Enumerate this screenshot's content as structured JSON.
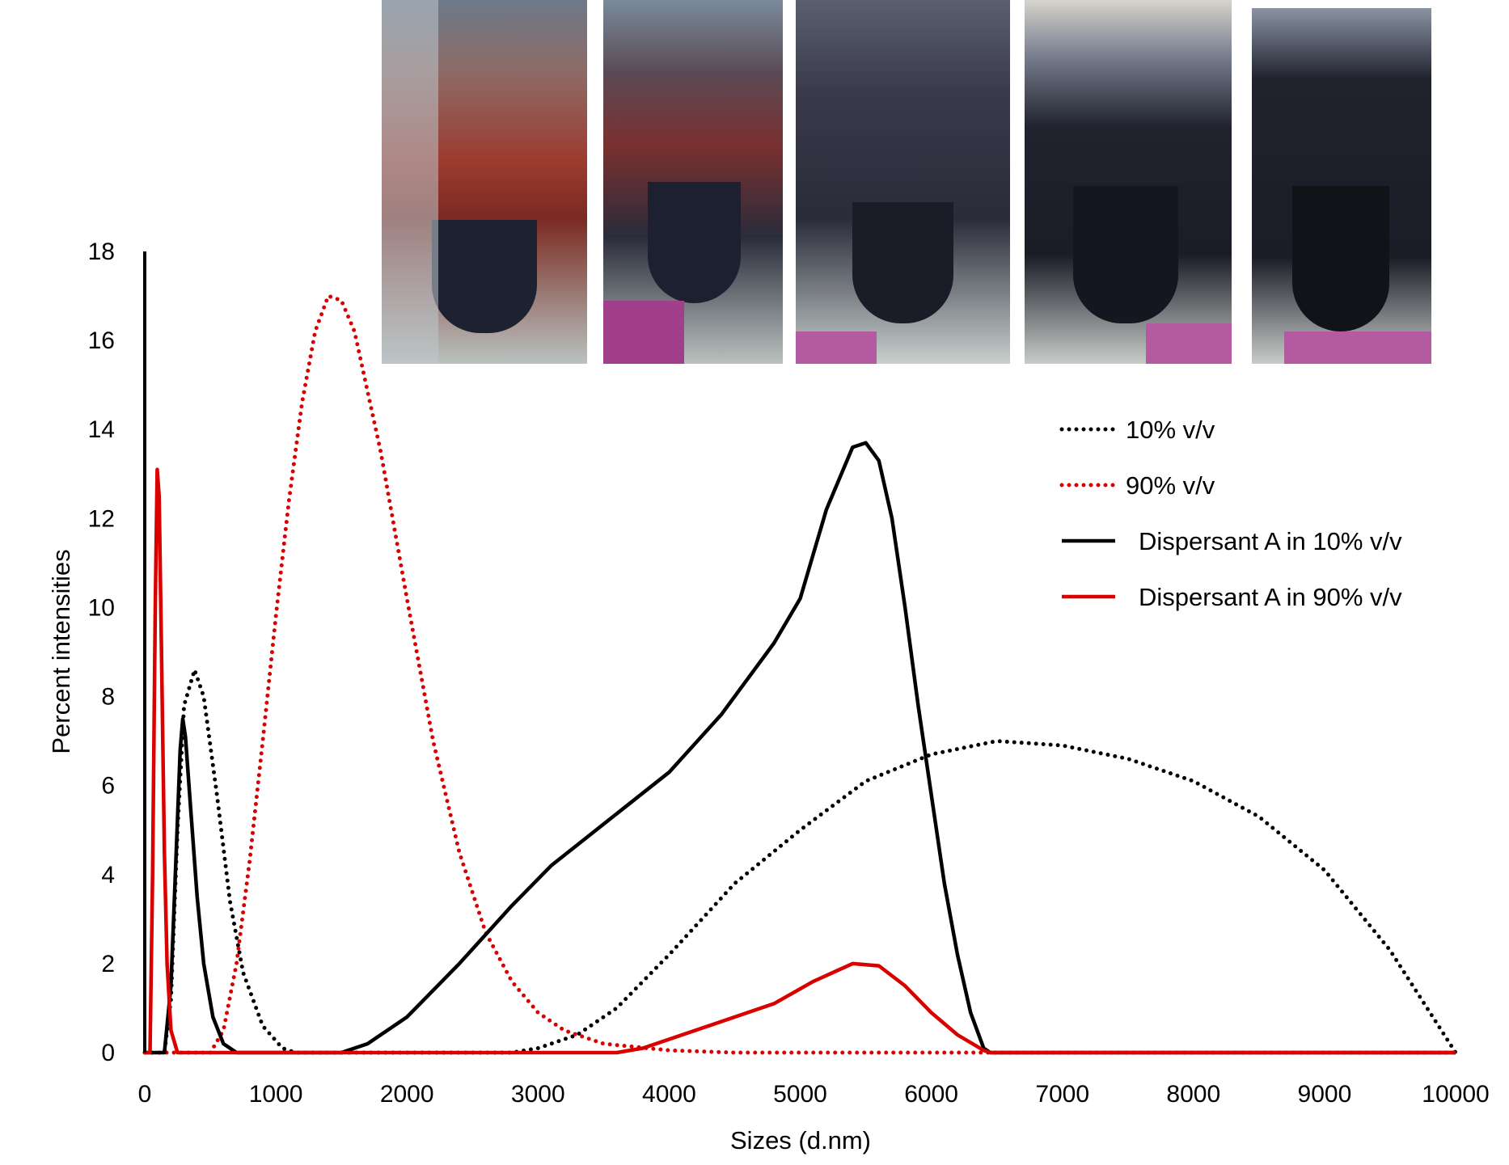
{
  "chart_data": {
    "type": "line",
    "title": "",
    "xlabel": "Sizes (d.nm)",
    "ylabel": "Percent intensities",
    "xlim": [
      0,
      10000
    ],
    "ylim": [
      0,
      18
    ],
    "x_ticks": [
      0,
      1000,
      2000,
      3000,
      4000,
      5000,
      6000,
      7000,
      8000,
      9000,
      10000
    ],
    "y_ticks": [
      0,
      2,
      4,
      6,
      8,
      10,
      12,
      14,
      16,
      18
    ],
    "grid": false,
    "legend_position": "right",
    "series": [
      {
        "name": "10% v/v",
        "color": "#000000",
        "style": "dotted",
        "points": [
          [
            0,
            0
          ],
          [
            150,
            0
          ],
          [
            200,
            1.2
          ],
          [
            250,
            5.0
          ],
          [
            300,
            7.8
          ],
          [
            380,
            8.6
          ],
          [
            450,
            8.0
          ],
          [
            550,
            5.8
          ],
          [
            650,
            3.4
          ],
          [
            750,
            1.8
          ],
          [
            900,
            0.6
          ],
          [
            1050,
            0.1
          ],
          [
            1150,
            0
          ],
          [
            2800,
            0
          ],
          [
            3000,
            0.1
          ],
          [
            3300,
            0.4
          ],
          [
            3600,
            1.0
          ],
          [
            4000,
            2.2
          ],
          [
            4500,
            3.8
          ],
          [
            5000,
            5.0
          ],
          [
            5500,
            6.1
          ],
          [
            6000,
            6.7
          ],
          [
            6500,
            7.0
          ],
          [
            7000,
            6.9
          ],
          [
            7500,
            6.6
          ],
          [
            8000,
            6.1
          ],
          [
            8500,
            5.3
          ],
          [
            9000,
            4.1
          ],
          [
            9500,
            2.3
          ],
          [
            10000,
            0
          ]
        ]
      },
      {
        "name": "90% v/v",
        "color": "#d90000",
        "style": "dotted",
        "points": [
          [
            0,
            0
          ],
          [
            500,
            0
          ],
          [
            600,
            0.5
          ],
          [
            700,
            2.0
          ],
          [
            800,
            4.3
          ],
          [
            900,
            7.0
          ],
          [
            1000,
            9.8
          ],
          [
            1100,
            12.4
          ],
          [
            1200,
            14.6
          ],
          [
            1300,
            16.2
          ],
          [
            1400,
            17.0
          ],
          [
            1500,
            16.9
          ],
          [
            1600,
            16.2
          ],
          [
            1800,
            13.5
          ],
          [
            2000,
            10.2
          ],
          [
            2200,
            7.0
          ],
          [
            2400,
            4.5
          ],
          [
            2600,
            2.7
          ],
          [
            2800,
            1.6
          ],
          [
            3000,
            0.9
          ],
          [
            3200,
            0.5
          ],
          [
            3500,
            0.2
          ],
          [
            4000,
            0.05
          ],
          [
            4500,
            0
          ],
          [
            10000,
            0
          ]
        ]
      },
      {
        "name": "Dispersant A in 10% v/v",
        "color": "#000000",
        "style": "solid",
        "points": [
          [
            0,
            0
          ],
          [
            150,
            0
          ],
          [
            200,
            1.5
          ],
          [
            240,
            4.5
          ],
          [
            270,
            6.8
          ],
          [
            290,
            7.5
          ],
          [
            310,
            7.1
          ],
          [
            350,
            5.5
          ],
          [
            400,
            3.5
          ],
          [
            450,
            2.0
          ],
          [
            520,
            0.8
          ],
          [
            600,
            0.2
          ],
          [
            700,
            0
          ],
          [
            1500,
            0
          ],
          [
            1700,
            0.2
          ],
          [
            2000,
            0.8
          ],
          [
            2400,
            2.0
          ],
          [
            2800,
            3.3
          ],
          [
            3100,
            4.2
          ],
          [
            3400,
            4.9
          ],
          [
            3700,
            5.6
          ],
          [
            4000,
            6.3
          ],
          [
            4400,
            7.6
          ],
          [
            4800,
            9.2
          ],
          [
            5000,
            10.2
          ],
          [
            5200,
            12.2
          ],
          [
            5400,
            13.6
          ],
          [
            5500,
            13.7
          ],
          [
            5600,
            13.3
          ],
          [
            5700,
            12.0
          ],
          [
            5800,
            10.0
          ],
          [
            5900,
            7.8
          ],
          [
            6000,
            5.8
          ],
          [
            6100,
            3.8
          ],
          [
            6200,
            2.2
          ],
          [
            6300,
            0.9
          ],
          [
            6400,
            0.1
          ],
          [
            6450,
            0
          ],
          [
            10000,
            0
          ]
        ]
      },
      {
        "name": "Dispersant A in 90% v/v",
        "color": "#d90000",
        "style": "solid",
        "points": [
          [
            0,
            0
          ],
          [
            40,
            0
          ],
          [
            60,
            4.0
          ],
          [
            80,
            10.0
          ],
          [
            95,
            13.1
          ],
          [
            110,
            12.5
          ],
          [
            130,
            8.5
          ],
          [
            150,
            4.5
          ],
          [
            170,
            2.0
          ],
          [
            200,
            0.5
          ],
          [
            250,
            0
          ],
          [
            3600,
            0
          ],
          [
            3800,
            0.1
          ],
          [
            4000,
            0.3
          ],
          [
            4400,
            0.7
          ],
          [
            4800,
            1.1
          ],
          [
            5100,
            1.6
          ],
          [
            5400,
            2.0
          ],
          [
            5600,
            1.95
          ],
          [
            5800,
            1.5
          ],
          [
            6000,
            0.9
          ],
          [
            6200,
            0.4
          ],
          [
            6400,
            0.05
          ],
          [
            6450,
            0
          ],
          [
            10000,
            0
          ]
        ]
      }
    ]
  }
}
